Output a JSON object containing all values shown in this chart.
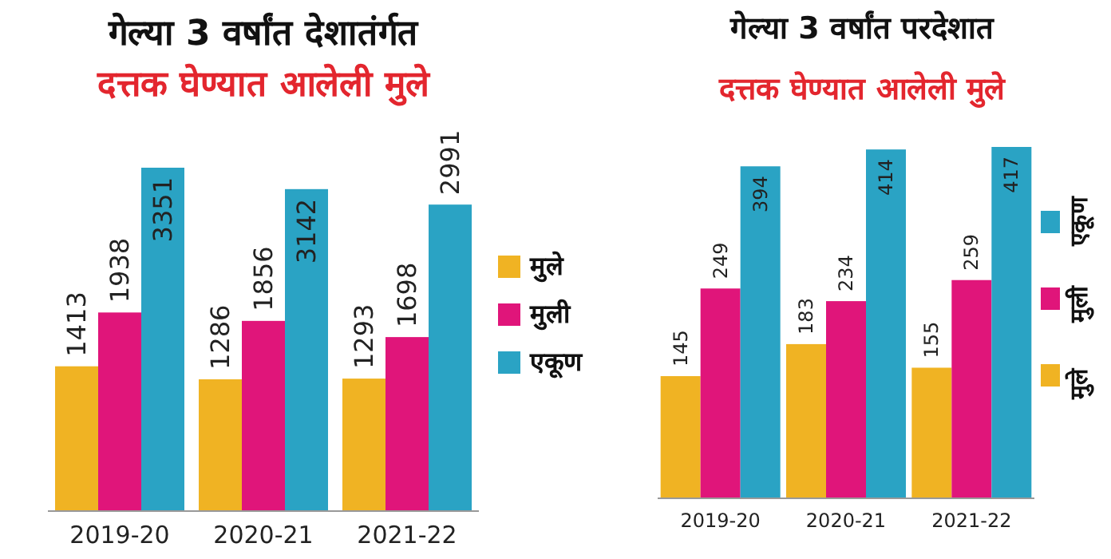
{
  "chart_data": [
    {
      "type": "bar",
      "title": "गेल्या 3 वर्षांत देशातंर्गत",
      "subtitle": "दत्तक घेण्यात आलेली मुले",
      "categories": [
        "2019-20",
        "2020-21",
        "2021-22"
      ],
      "series": [
        {
          "name": "मुले",
          "color": "#f0b323",
          "values": [
            1413,
            1286,
            1293
          ]
        },
        {
          "name": "मुली",
          "color": "#e0157a",
          "values": [
            1938,
            1856,
            1698
          ]
        },
        {
          "name": "एकूण",
          "color": "#2aa3c4",
          "values": [
            3351,
            3142,
            2991
          ]
        }
      ],
      "data_labels": true,
      "legend": "right"
    },
    {
      "type": "bar",
      "title": "गेल्या 3 वर्षांत परदेशात",
      "subtitle": "दत्तक घेण्यात आलेली मुले",
      "categories": [
        "2019-20",
        "2020-21",
        "2021-22"
      ],
      "series": [
        {
          "name": "मुले",
          "color": "#f0b323",
          "values": [
            145,
            183,
            155
          ]
        },
        {
          "name": "मुली",
          "color": "#e0157a",
          "values": [
            249,
            234,
            259
          ]
        },
        {
          "name": "एकूण",
          "color": "#2aa3c4",
          "values": [
            394,
            414,
            417
          ]
        }
      ],
      "data_labels": true,
      "legend": "right"
    }
  ]
}
